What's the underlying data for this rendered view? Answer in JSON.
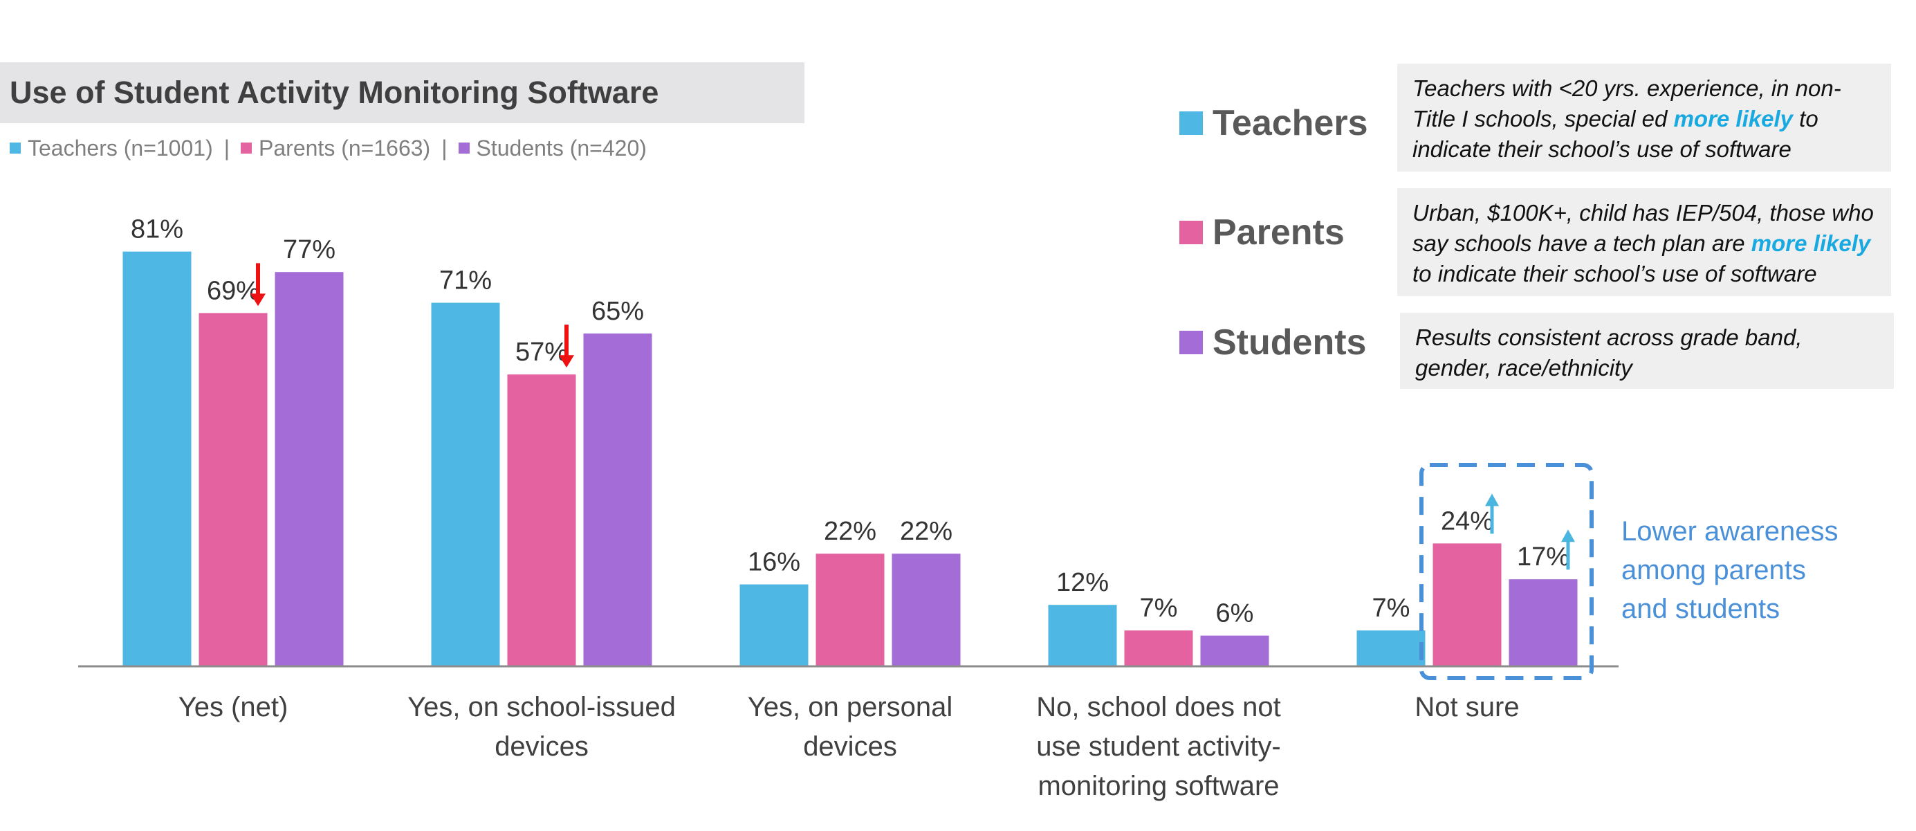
{
  "header": {
    "title": "Use of Student Activity Monitoring Software",
    "separator": "|"
  },
  "colors": {
    "teachers": "#4fb7e4",
    "parents": "#e3629f",
    "students": "#a46cd7",
    "down_arrow": "#ee1111",
    "up_arrow": "#4ab6e0",
    "callout": "#4a90d9"
  },
  "chart_data": {
    "type": "bar",
    "categories": [
      "Yes (net)",
      "Yes, on school-issued devices",
      "Yes, on personal devices",
      "No, school does not use student activity-monitoring software",
      "Not sure"
    ],
    "category_lines": [
      [
        "Yes (net)"
      ],
      [
        "Yes, on school-issued",
        "devices"
      ],
      [
        "Yes, on personal",
        "devices"
      ],
      [
        "No, school does not",
        "use student activity-",
        "monitoring software"
      ],
      [
        "Not sure"
      ]
    ],
    "series": [
      {
        "name": "Teachers (n=1001)",
        "values": [
          81,
          71,
          16,
          12,
          7
        ]
      },
      {
        "name": "Parents (n=1663)",
        "values": [
          69,
          57,
          22,
          7,
          24
        ]
      },
      {
        "name": "Students (n=420)",
        "values": [
          77,
          65,
          22,
          6,
          17
        ]
      }
    ],
    "value_suffix": "%",
    "ylim": [
      0,
      100
    ],
    "grid": false,
    "markers": [
      {
        "type": "down-arrow",
        "category": 0,
        "series": 1
      },
      {
        "type": "down-arrow",
        "category": 1,
        "series": 1
      },
      {
        "type": "up-arrow",
        "category": 4,
        "series": 1
      },
      {
        "type": "up-arrow",
        "category": 4,
        "series": 2
      }
    ],
    "highlight": {
      "categories": [
        4
      ],
      "series": [
        1,
        2
      ],
      "style": "dashed-box"
    }
  },
  "side_legend": [
    {
      "label": "Teachers",
      "note": [
        {
          "text": "Teachers with <20 yrs. experience, in non-Title I schools, special ed "
        },
        {
          "text": "more likely",
          "highlight": true
        },
        {
          "text": " to indicate their school’s use of software"
        }
      ]
    },
    {
      "label": "Parents",
      "note": [
        {
          "text": "Urban, $100K+, child has IEP/504, those who say schools have a tech plan are "
        },
        {
          "text": "more likely",
          "highlight": true
        },
        {
          "text": " to indicate their school’s use of software"
        }
      ]
    },
    {
      "label": "Students",
      "note": [
        {
          "text": "Results consistent across grade band, gender, race/ethnicity"
        }
      ]
    }
  ],
  "callout": {
    "text": "Lower awareness among parents and students"
  }
}
